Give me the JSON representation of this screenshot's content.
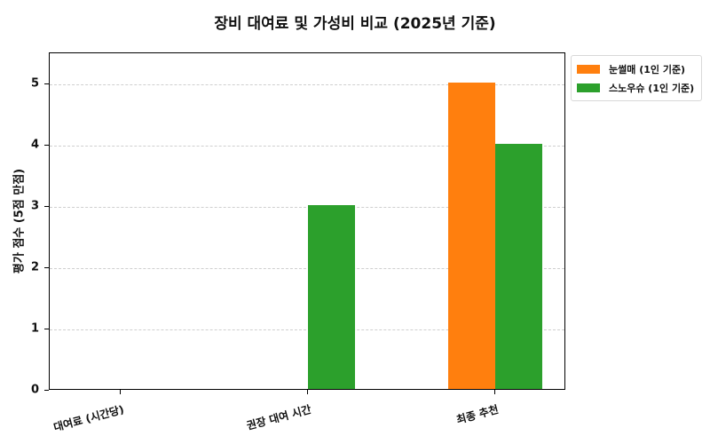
{
  "chart_data": {
    "type": "bar",
    "title": "장비 대여료 및 가성비 비교 (2025년 기준)",
    "xlabel": "",
    "ylabel": "평가 점수 (5점 만점)",
    "categories": [
      "대여료 (시간당)",
      "권장 대여 시간",
      "최종 추천"
    ],
    "series": [
      {
        "name": "눈썰매 (1인 기준)",
        "color": "#ff7f0e",
        "values": [
          0,
          0,
          5
        ]
      },
      {
        "name": "스노우슈 (1인 기준)",
        "color": "#2ca02c",
        "values": [
          0,
          3,
          4
        ]
      }
    ],
    "ylim": [
      0,
      5.5
    ],
    "yticks": [
      "0",
      "1",
      "2",
      "3",
      "4",
      "5"
    ],
    "grid": true,
    "legend_position": "upper right, outside plot"
  }
}
